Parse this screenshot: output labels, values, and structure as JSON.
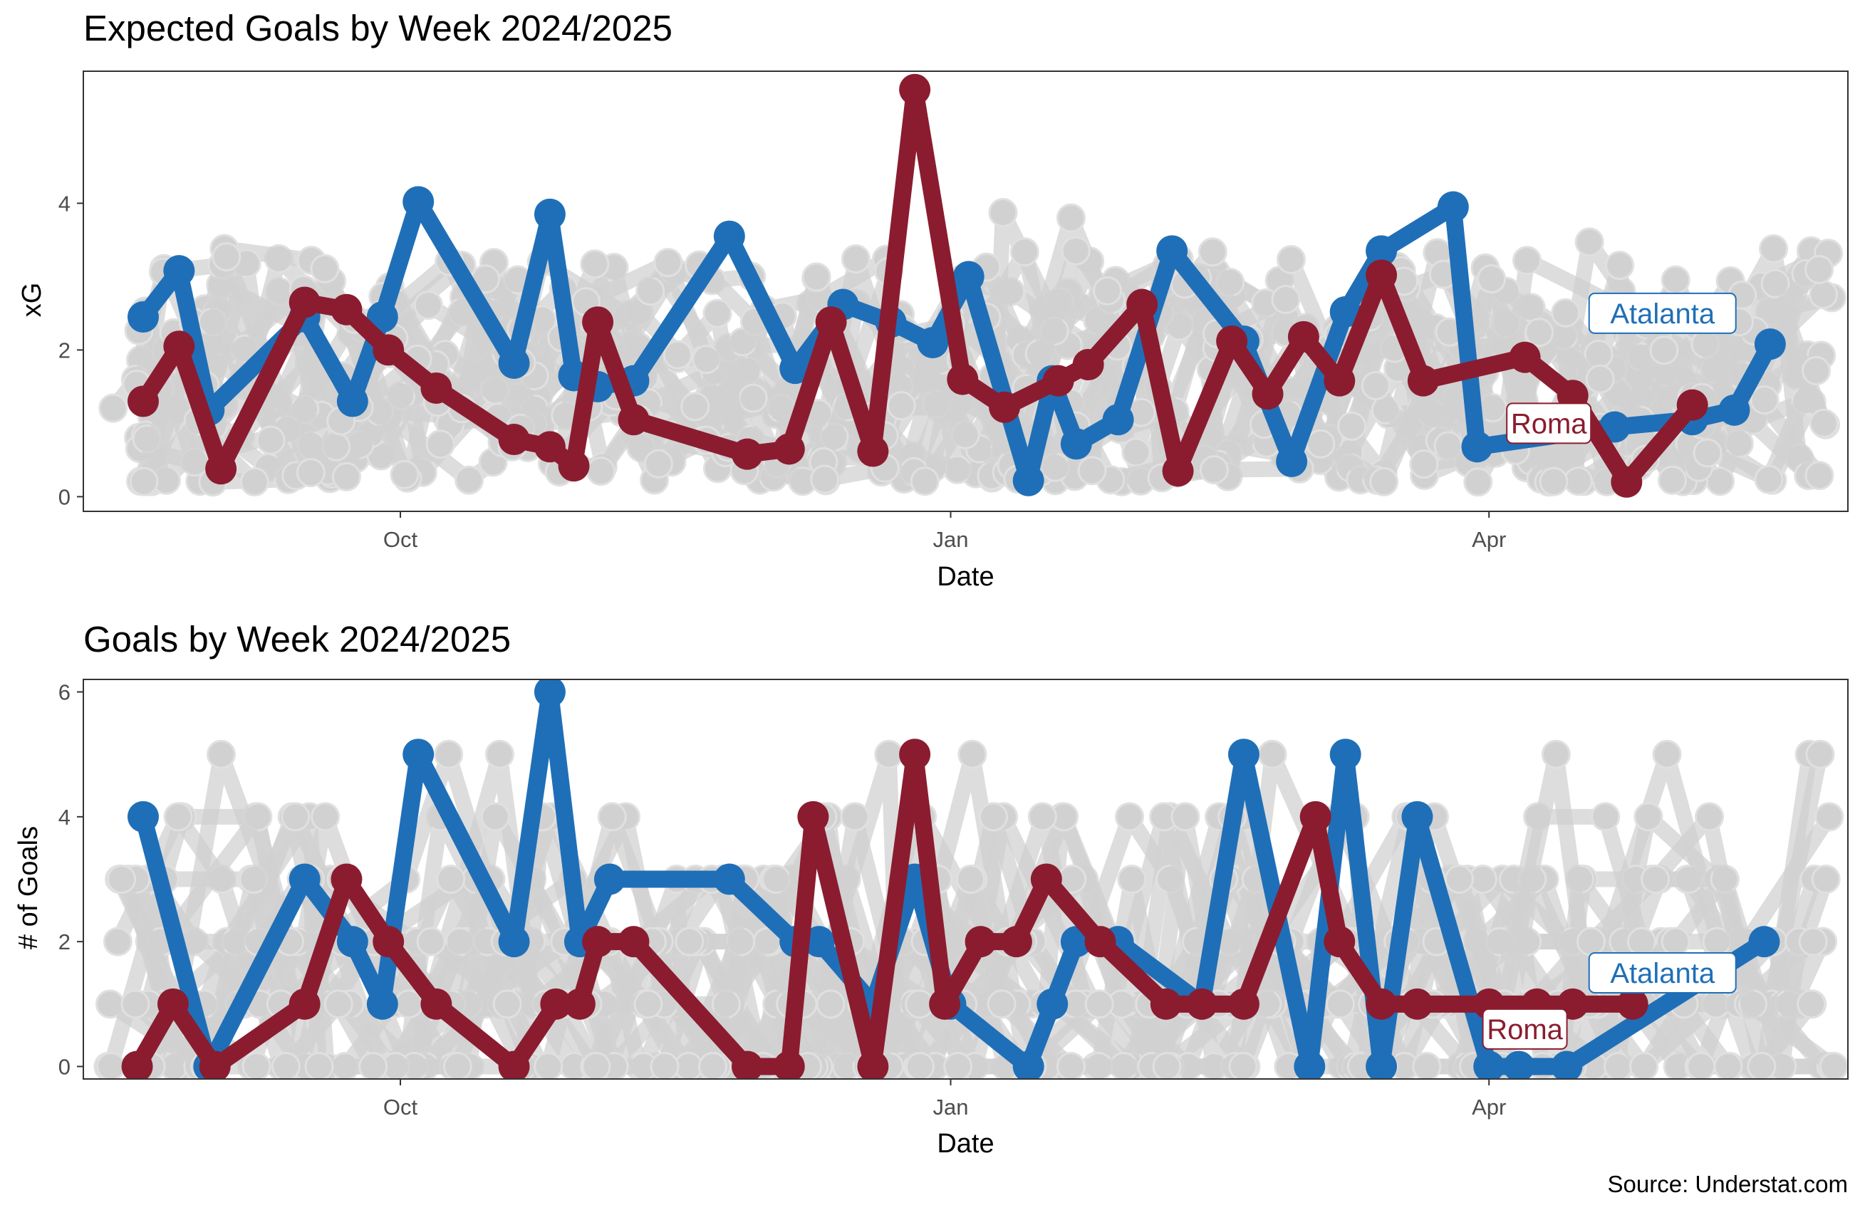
{
  "caption": "Source: Understat.com",
  "colors": {
    "Atalanta": "#1f6fb8",
    "Roma": "#8b1c2f",
    "other": "#c6c6c6",
    "panel_border": "#333333"
  },
  "chart_data": [
    {
      "type": "line",
      "title": "Expected Goals by Week 2024/2025",
      "xlabel": "Date",
      "ylabel": "xG",
      "x_ticks": [
        "Oct",
        "Jan",
        "Apr"
      ],
      "x_tick_dates": [
        "2024-10-01",
        "2025-01-01",
        "2025-04-01"
      ],
      "y_ticks": [
        0,
        2,
        4
      ],
      "xlim": [
        "2024-08-09",
        "2025-05-31"
      ],
      "ylim": [
        -0.2,
        5.8
      ],
      "grid": false,
      "highlight_labels": [
        {
          "name": "Atalanta",
          "x": "2025-04-30",
          "y": 2.5
        },
        {
          "name": "Roma",
          "x": "2025-04-11",
          "y": 1.0
        }
      ],
      "series": [
        {
          "name": "Atalanta",
          "x": [
            "2024-08-19",
            "2024-08-25",
            "2024-08-30",
            "2024-09-15",
            "2024-09-23",
            "2024-09-28",
            "2024-10-04",
            "2024-10-20",
            "2024-10-26",
            "2024-10-30",
            "2024-11-03",
            "2024-11-09",
            "2024-11-25",
            "2024-12-06",
            "2024-12-14",
            "2024-12-22",
            "2024-12-29",
            "2025-01-04",
            "2025-01-14",
            "2025-01-18",
            "2025-01-22",
            "2025-01-29",
            "2025-02-07",
            "2025-02-19",
            "2025-02-27",
            "2025-03-08",
            "2025-03-14",
            "2025-03-26",
            "2025-03-30",
            "2025-04-22",
            "2025-05-05",
            "2025-05-12",
            "2025-05-18"
          ],
          "values": [
            2.45,
            3.08,
            1.18,
            2.45,
            1.3,
            2.45,
            4.02,
            1.82,
            3.85,
            1.65,
            1.5,
            1.58,
            3.55,
            1.75,
            2.62,
            2.38,
            2.1,
            3.0,
            0.22,
            1.58,
            0.72,
            1.05,
            3.35,
            2.12,
            0.48,
            2.52,
            3.35,
            3.95,
            0.68,
            0.95,
            1.05,
            1.18,
            2.08
          ]
        },
        {
          "name": "Roma",
          "x": [
            "2024-08-19",
            "2024-08-25",
            "2024-09-01",
            "2024-09-15",
            "2024-09-22",
            "2024-09-29",
            "2024-10-07",
            "2024-10-20",
            "2024-10-26",
            "2024-10-30",
            "2024-11-03",
            "2024-11-09",
            "2024-11-28",
            "2024-12-05",
            "2024-12-12",
            "2024-12-19",
            "2024-12-26",
            "2025-01-03",
            "2025-01-10",
            "2025-01-19",
            "2025-01-24",
            "2025-02-02",
            "2025-02-08",
            "2025-02-17",
            "2025-02-23",
            "2025-03-01",
            "2025-03-07",
            "2025-03-14",
            "2025-03-21",
            "2025-04-07",
            "2025-04-15",
            "2025-04-24",
            "2025-05-05"
          ],
          "values": [
            1.3,
            2.05,
            0.38,
            2.65,
            2.55,
            2.0,
            1.48,
            0.78,
            0.68,
            0.42,
            2.38,
            1.05,
            0.58,
            0.65,
            2.38,
            0.62,
            5.55,
            1.6,
            1.22,
            1.58,
            1.8,
            2.62,
            0.35,
            2.12,
            1.4,
            2.18,
            1.58,
            3.02,
            1.58,
            1.9,
            1.38,
            0.2,
            1.25
          ]
        }
      ]
    },
    {
      "type": "line",
      "title": "Goals by Week 2024/2025",
      "xlabel": "Date",
      "ylabel": "# of Goals",
      "x_ticks": [
        "Oct",
        "Jan",
        "Apr"
      ],
      "x_tick_dates": [
        "2024-10-01",
        "2025-01-01",
        "2025-04-01"
      ],
      "y_ticks": [
        0,
        2,
        4,
        6
      ],
      "xlim": [
        "2024-08-09",
        "2025-05-31"
      ],
      "ylim": [
        -0.2,
        6.2
      ],
      "grid": false,
      "highlight_labels": [
        {
          "name": "Atalanta",
          "x": "2025-04-30",
          "y": 1.5
        },
        {
          "name": "Roma",
          "x": "2025-04-07",
          "y": 0.6
        }
      ],
      "series": [
        {
          "name": "Atalanta",
          "x": [
            "2024-08-19",
            "2024-08-30",
            "2024-09-15",
            "2024-09-23",
            "2024-09-28",
            "2024-10-04",
            "2024-10-20",
            "2024-10-26",
            "2024-10-31",
            "2024-11-05",
            "2024-11-25",
            "2024-12-06",
            "2024-12-10",
            "2024-12-19",
            "2024-12-26",
            "2025-01-01",
            "2025-01-14",
            "2025-01-18",
            "2025-01-22",
            "2025-01-29",
            "2025-02-12",
            "2025-02-19",
            "2025-03-02",
            "2025-03-08",
            "2025-03-14",
            "2025-03-20",
            "2025-04-01",
            "2025-04-06",
            "2025-04-14",
            "2025-05-17"
          ],
          "values": [
            4,
            0,
            3,
            2,
            1,
            5,
            2,
            6,
            2,
            3,
            3,
            2,
            2,
            1,
            3,
            1,
            0,
            1,
            2,
            2,
            1,
            5,
            0,
            5,
            0,
            4,
            0,
            0,
            0,
            2
          ]
        },
        {
          "name": "Roma",
          "x": [
            "2024-08-18",
            "2024-08-24",
            "2024-08-31",
            "2024-09-15",
            "2024-09-22",
            "2024-09-29",
            "2024-10-07",
            "2024-10-20",
            "2024-10-27",
            "2024-10-31",
            "2024-11-03",
            "2024-11-09",
            "2024-11-28",
            "2024-12-05",
            "2024-12-09",
            "2024-12-19",
            "2024-12-26",
            "2024-12-31",
            "2025-01-06",
            "2025-01-12",
            "2025-01-17",
            "2025-01-26",
            "2025-02-06",
            "2025-02-12",
            "2025-02-19",
            "2025-03-03",
            "2025-03-07",
            "2025-03-14",
            "2025-03-20",
            "2025-04-01",
            "2025-04-09",
            "2025-04-15",
            "2025-04-25"
          ],
          "values": [
            0,
            1,
            0,
            1,
            3,
            2,
            1,
            0,
            1,
            1,
            2,
            2,
            0,
            0,
            4,
            0,
            5,
            1,
            2,
            2,
            3,
            2,
            1,
            1,
            1,
            4,
            2,
            1,
            1,
            1,
            1,
            1,
            1
          ]
        }
      ]
    }
  ]
}
